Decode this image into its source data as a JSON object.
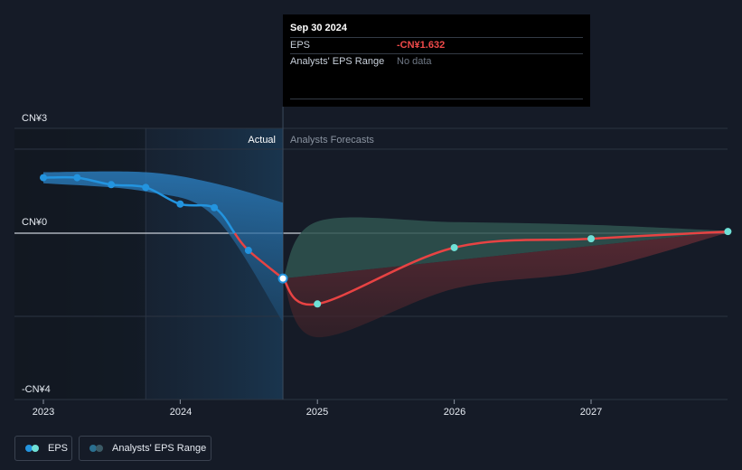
{
  "chart_data": {
    "type": "line",
    "y_axis": {
      "unit": "CN¥",
      "ylim": [
        -4,
        3
      ],
      "tick_labels": [
        "CN¥3",
        "CN¥0",
        "-CN¥4"
      ]
    },
    "x_axis": {
      "tick_labels": [
        "2023",
        "2024",
        "2025",
        "2026",
        "2027"
      ]
    },
    "zones": {
      "actual_label": "Actual",
      "forecast_label": "Analysts Forecasts",
      "divider_date": "2024-09-30"
    },
    "series": [
      {
        "name": "EPS",
        "color": "#2394df",
        "points": [
          {
            "x": "2022-12-31",
            "y": 2.0
          },
          {
            "x": "2023-03-31",
            "y": 2.0
          },
          {
            "x": "2023-06-30",
            "y": 1.75
          },
          {
            "x": "2023-09-30",
            "y": 1.65
          },
          {
            "x": "2023-12-31",
            "y": 1.05
          },
          {
            "x": "2024-03-31",
            "y": 0.92
          },
          {
            "x": "2024-06-30",
            "y": -0.62
          },
          {
            "x": "2024-09-30",
            "y": -1.632
          }
        ]
      },
      {
        "name": "Analysts Forecast",
        "color": "#e84343",
        "points": [
          {
            "x": "2024-09-30",
            "y": -1.632
          },
          {
            "x": "2024-12-31",
            "y": -2.55
          },
          {
            "x": "2025-12-31",
            "y": -0.52
          },
          {
            "x": "2026-12-31",
            "y": -0.2
          },
          {
            "x": "2027-12-31",
            "y": 0.06
          }
        ]
      }
    ],
    "ranges": [
      {
        "name": "Actual EPS Range",
        "color": "#2394df",
        "upper": [
          {
            "x": "2022-12-31",
            "y": 2.2
          },
          {
            "x": "2023-09-30",
            "y": 2.2
          },
          {
            "x": "2024-03-31",
            "y": 1.8
          },
          {
            "x": "2024-09-30",
            "y": 1.1
          }
        ],
        "lower": [
          {
            "x": "2022-12-31",
            "y": 1.8
          },
          {
            "x": "2023-09-30",
            "y": 1.5
          },
          {
            "x": "2024-03-31",
            "y": 0.6
          },
          {
            "x": "2024-09-30",
            "y": -3.2
          }
        ]
      },
      {
        "name": "Analysts' EPS Range",
        "upper": [
          {
            "x": "2024-09-30",
            "y": -1.632
          },
          {
            "x": "2024-12-31",
            "y": 0.42
          },
          {
            "x": "2025-12-31",
            "y": 0.4
          },
          {
            "x": "2026-12-31",
            "y": 0.3
          },
          {
            "x": "2027-12-31",
            "y": 0.08
          }
        ],
        "lower": [
          {
            "x": "2024-09-30",
            "y": -1.632
          },
          {
            "x": "2024-12-31",
            "y": -3.75
          },
          {
            "x": "2025-12-31",
            "y": -2.0
          },
          {
            "x": "2026-12-31",
            "y": -1.35
          },
          {
            "x": "2027-12-31",
            "y": 0.02
          }
        ]
      }
    ],
    "grid": true,
    "legend": "bottom-left"
  },
  "tooltip": {
    "date": "Sep 30 2024",
    "rows": [
      {
        "label": "EPS",
        "value": "-CN¥1.632"
      },
      {
        "label": "Analysts' EPS Range",
        "value": "No data"
      }
    ]
  },
  "legend": {
    "eps_label": "EPS",
    "range_label": "Analysts' EPS Range",
    "eps_colors": [
      "#2394df",
      "#6fe0d6"
    ],
    "range_colors": [
      "#2a6f8f",
      "#3b5a66"
    ]
  }
}
